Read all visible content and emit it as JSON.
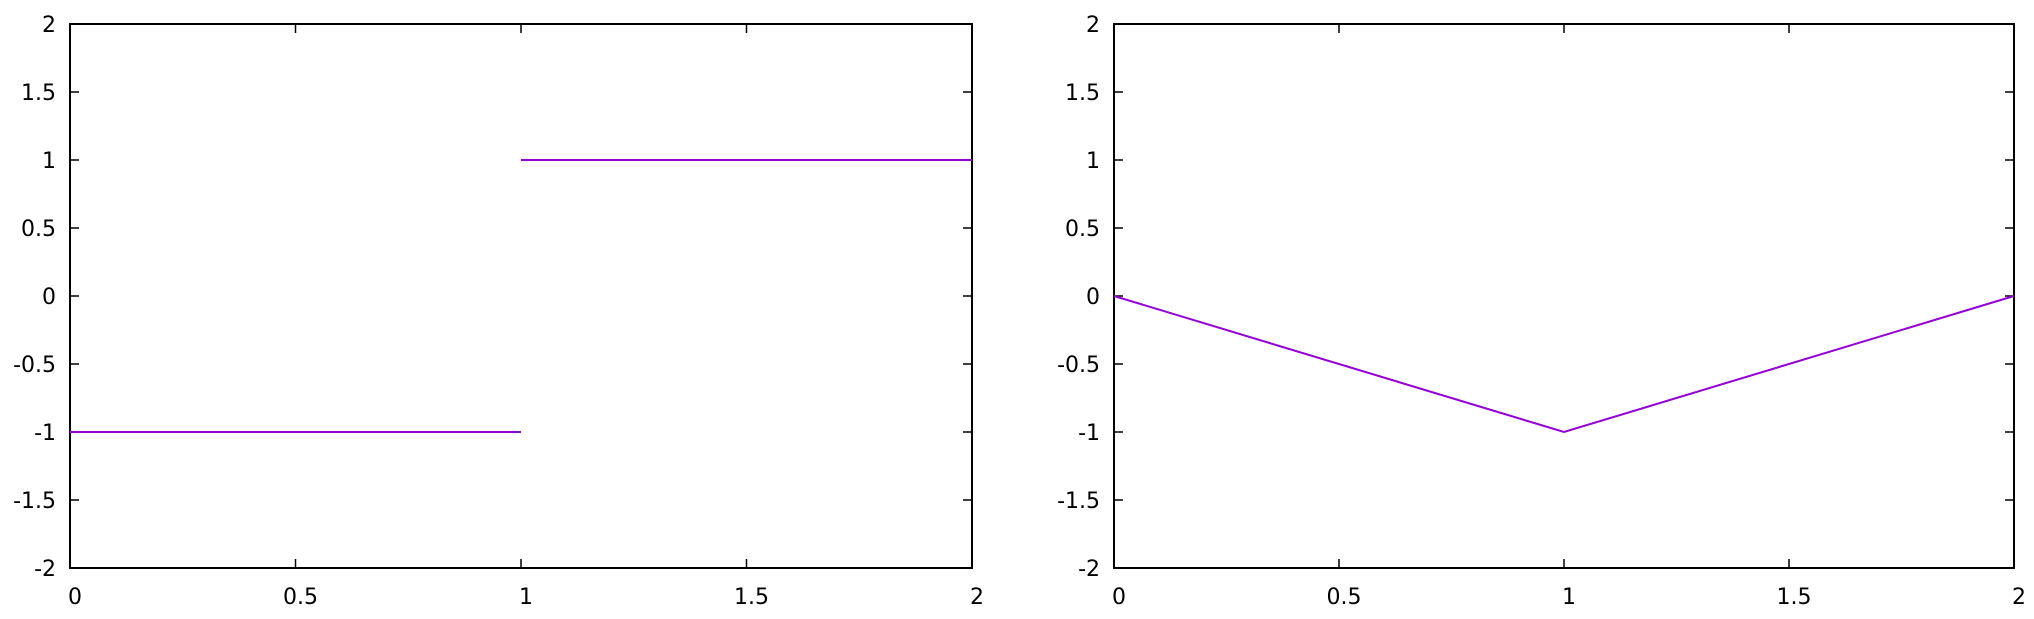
{
  "chart_data": [
    {
      "type": "line",
      "title": "",
      "xlabel": "",
      "ylabel": "",
      "xlim": [
        0,
        2
      ],
      "ylim": [
        -2,
        2
      ],
      "x_ticks": [
        "0",
        "0.5",
        "1",
        "1.5",
        "2"
      ],
      "y_ticks": [
        "2",
        "1.5",
        "1",
        "0.5",
        "0",
        "-0.5",
        "-1",
        "-1.5",
        "-2"
      ],
      "grid": false,
      "legend": "none",
      "color": "#9400d3",
      "series": [
        {
          "segments": [
            {
              "x": [
                0,
                1
              ],
              "y": [
                -1,
                -1
              ]
            },
            {
              "x": [
                1,
                2
              ],
              "y": [
                1,
                1
              ]
            }
          ]
        }
      ]
    },
    {
      "type": "line",
      "title": "",
      "xlabel": "",
      "ylabel": "",
      "xlim": [
        0,
        2
      ],
      "ylim": [
        -2,
        2
      ],
      "x_ticks": [
        "0",
        "0.5",
        "1",
        "1.5",
        "2"
      ],
      "y_ticks": [
        "2",
        "1.5",
        "1",
        "0.5",
        "0",
        "-0.5",
        "-1",
        "-1.5",
        "-2"
      ],
      "grid": false,
      "legend": "none",
      "color": "#9400d3",
      "series": [
        {
          "segments": [
            {
              "x": [
                0,
                1,
                2
              ],
              "y": [
                0,
                -1,
                0
              ]
            }
          ]
        }
      ]
    }
  ]
}
